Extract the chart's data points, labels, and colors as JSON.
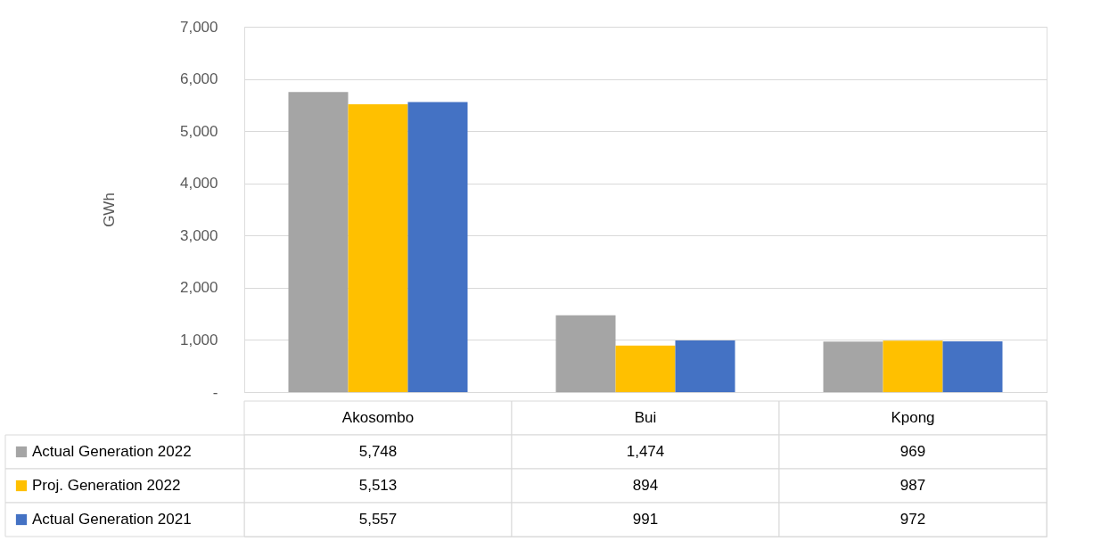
{
  "chart_data": {
    "type": "bar",
    "ylabel": "GWh",
    "categories": [
      "Akosombo",
      "Bui",
      "Kpong"
    ],
    "series": [
      {
        "name": "Actual Generation 2022",
        "color": "#a5a5a5",
        "values": [
          5748,
          1474,
          969
        ],
        "value_labels": [
          "5,748",
          "1,474",
          "969"
        ]
      },
      {
        "name": "Proj. Generation 2022",
        "color": "#ffc000",
        "values": [
          5513,
          894,
          987
        ],
        "value_labels": [
          "5,513",
          "894",
          "987"
        ]
      },
      {
        "name": "Actual Generation 2021",
        "color": "#4472c4",
        "values": [
          5557,
          991,
          972
        ],
        "value_labels": [
          "5,557",
          "991",
          "972"
        ]
      }
    ],
    "ylim": [
      0,
      7000
    ],
    "yticks": [
      {
        "value": 0,
        "label": "-"
      },
      {
        "value": 1000,
        "label": "1,000"
      },
      {
        "value": 2000,
        "label": "2,000"
      },
      {
        "value": 3000,
        "label": "3,000"
      },
      {
        "value": 4000,
        "label": "4,000"
      },
      {
        "value": 5000,
        "label": "5,000"
      },
      {
        "value": 6000,
        "label": "6,000"
      },
      {
        "value": 7000,
        "label": "7,000"
      }
    ],
    "grid": "y",
    "legend": "bottom"
  }
}
